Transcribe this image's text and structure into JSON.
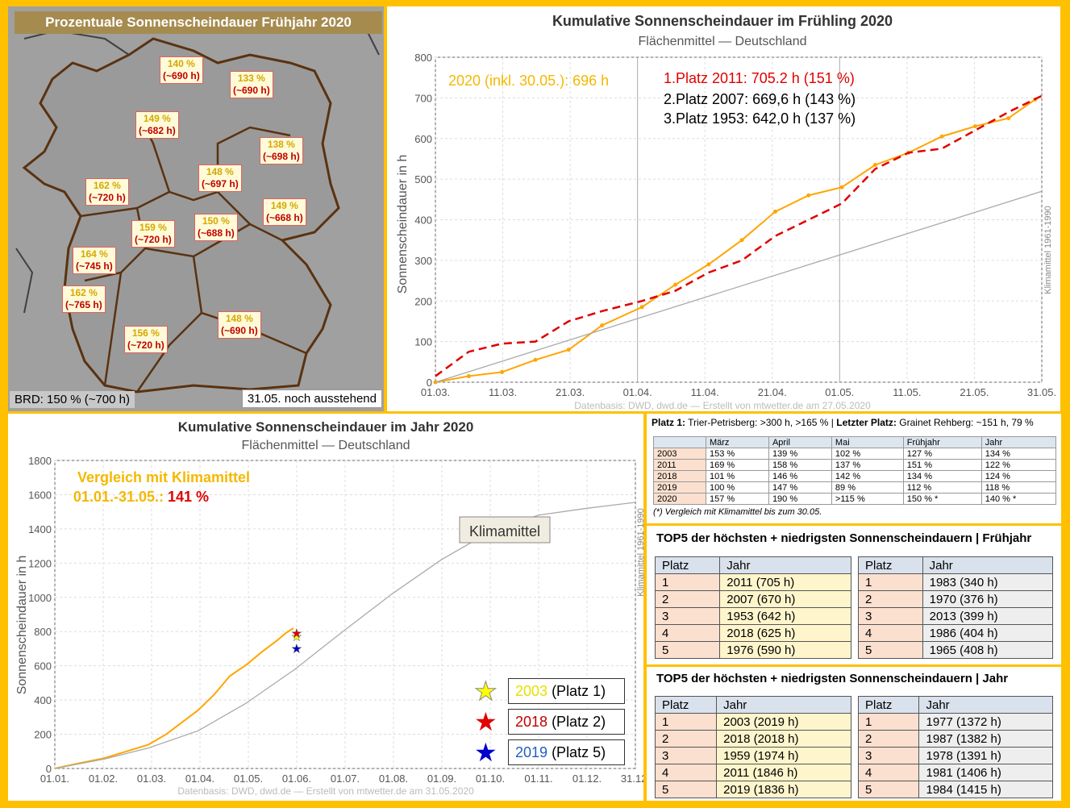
{
  "map": {
    "title": "Prozentuale Sonnenscheindauer Frühjahr 2020",
    "regions": [
      {
        "pct": "140 %",
        "hrs": "(~690 h)"
      },
      {
        "pct": "133 %",
        "hrs": "(~690 h)"
      },
      {
        "pct": "149 %",
        "hrs": "(~682 h)"
      },
      {
        "pct": "138 %",
        "hrs": "(~698 h)"
      },
      {
        "pct": "148 %",
        "hrs": "(~697 h)"
      },
      {
        "pct": "162 %",
        "hrs": "(~720 h)"
      },
      {
        "pct": "149 %",
        "hrs": "(~668 h)"
      },
      {
        "pct": "159 %",
        "hrs": "(~720 h)"
      },
      {
        "pct": "150 %",
        "hrs": "(~688 h)"
      },
      {
        "pct": "164 %",
        "hrs": "(~745 h)"
      },
      {
        "pct": "162 %",
        "hrs": "(~765 h)"
      },
      {
        "pct": "148 %",
        "hrs": "(~690 h)"
      },
      {
        "pct": "156 %",
        "hrs": "(~720 h)"
      }
    ],
    "footer_left": "BRD: 150 % (~700 h)",
    "footer_right": "31.05. noch ausstehend"
  },
  "chart_data": [
    {
      "type": "line",
      "title": "Kumulative Sonnenscheindauer im Frühling 2020",
      "subtitle": "Flächenmittel — Deutschland",
      "ylabel": "Sonnenscheindauer in h",
      "ylim": [
        0,
        800
      ],
      "yticks": [
        "0",
        "100",
        "200",
        "300",
        "400",
        "500",
        "600",
        "700",
        "800"
      ],
      "x_ticks": [
        "01.03.",
        "11.03.",
        "21.03.",
        "01.04.",
        "11.04.",
        "21.04.",
        "01.05.",
        "11.05.",
        "21.05.",
        "31.05."
      ],
      "x_range_days": [
        0,
        91
      ],
      "annotations": {
        "current": "2020 (inkl. 30.05.): 696 h",
        "first": "1.Platz 2011: 705.2 h (151 %)",
        "second": "2.Platz 2007: 669,6 h (143 %)",
        "third": "3.Platz 1953: 642,0 h (137 %)"
      },
      "side_label": "Klimamittel 1961-1990",
      "source": "Datenbasis: DWD, dwd.de — Erstellt von mtwetter.de am 27.05.2020",
      "series": [
        {
          "name": "2020",
          "color": "#ffa500",
          "x": [
            0,
            5,
            10,
            15,
            20,
            25,
            31,
            36,
            41,
            46,
            51,
            56,
            61,
            66,
            71,
            76,
            81,
            86,
            90
          ],
          "values": [
            0,
            15,
            25,
            55,
            80,
            140,
            185,
            240,
            290,
            350,
            420,
            460,
            480,
            535,
            565,
            605,
            630,
            650,
            696
          ]
        },
        {
          "name": "2011",
          "color": "#e00000",
          "x": [
            0,
            5,
            10,
            15,
            20,
            25,
            31,
            36,
            41,
            46,
            51,
            56,
            61,
            66,
            71,
            76,
            81,
            86,
            91
          ],
          "values": [
            15,
            75,
            95,
            100,
            150,
            175,
            200,
            225,
            270,
            300,
            360,
            400,
            440,
            525,
            565,
            575,
            620,
            665,
            705
          ]
        },
        {
          "name": "Klimamittel 1961-1990",
          "color": "#aaaaaa",
          "x": [
            0,
            91
          ],
          "values": [
            0,
            470
          ]
        }
      ]
    },
    {
      "type": "line",
      "title": "Kumulative Sonnenscheindauer im Jahr 2020",
      "subtitle": "Flächenmittel — Deutschland",
      "ylabel": "Sonnenscheindauer in h",
      "ylim": [
        0,
        1800
      ],
      "yticks": [
        "0",
        "200",
        "400",
        "600",
        "800",
        "1000",
        "1200",
        "1400",
        "1600",
        "1800"
      ],
      "x_ticks": [
        "01.01.",
        "01.02.",
        "01.03.",
        "01.04.",
        "01.05.",
        "01.06.",
        "01.07.",
        "01.08.",
        "01.09.",
        "01.10.",
        "01.11.",
        "01.12.",
        "31.12."
      ],
      "annotation_line1": "Vergleich mit Klimamittel",
      "annotation_line2": "01.01.-31.05.:",
      "annotation_value": "141 %",
      "callout": "Klimamittel",
      "side_label": "Klimamittel 1961-1990",
      "source": "Datenbasis: DWD, dwd.de — Erstellt von mtwetter.de am 31.05.2020",
      "legend": [
        {
          "year": "2003",
          "rank": "(Platz 1)",
          "color": "#ffff00"
        },
        {
          "year": "2018",
          "rank": "(Platz 2)",
          "color": "#e00000"
        },
        {
          "year": "2019",
          "rank": "(Platz 5)",
          "color": "#0000cc"
        }
      ],
      "series": [
        {
          "name": "2020",
          "color": "#ffa500",
          "x": [
            0,
            15,
            31,
            45,
            59,
            70,
            80,
            90,
            100,
            110,
            121,
            130,
            140,
            145,
            150
          ],
          "values": [
            0,
            30,
            60,
            100,
            140,
            200,
            270,
            340,
            430,
            540,
            610,
            680,
            750,
            790,
            820
          ]
        },
        {
          "name": "Klimamittel 1961-1990",
          "color": "#aaaaaa",
          "x": [
            0,
            31,
            59,
            90,
            120,
            151,
            181,
            212,
            243,
            273,
            304,
            334,
            365
          ],
          "values": [
            0,
            55,
            120,
            220,
            380,
            580,
            800,
            1020,
            1220,
            1380,
            1480,
            1520,
            1555
          ]
        },
        {
          "name": "2003",
          "color": "#ffff00",
          "x": [
            152
          ],
          "values": [
            770
          ]
        },
        {
          "name": "2018",
          "color": "#e00000",
          "x": [
            152
          ],
          "values": [
            790
          ]
        },
        {
          "name": "2019",
          "color": "#0000cc",
          "x": [
            152
          ],
          "values": [
            700
          ]
        }
      ]
    }
  ],
  "stats": {
    "summary_label1": "Platz 1:",
    "summary_text1": "Trier-Petrisberg:  >300 h, >165 % |",
    "summary_label2": "Letzter Platz:",
    "summary_text2": "Grainet Rehberg:  ~151 h, 79 %",
    "headers": [
      "",
      "März",
      "April",
      "Mai",
      "Frühjahr",
      "Jahr"
    ],
    "rows": [
      [
        "2003",
        "153 %",
        "139 %",
        "102 %",
        "127 %",
        "134 %"
      ],
      [
        "2011",
        "169 %",
        "158 %",
        "137 %",
        "151 %",
        "122 %"
      ],
      [
        "2018",
        "101 %",
        "146 %",
        "142 %",
        "134 %",
        "124 %"
      ],
      [
        "2019",
        "100 %",
        "147 %",
        "89 %",
        "112 %",
        "118 %"
      ],
      [
        "2020",
        "157 %",
        "190 %",
        ">115 %",
        "150 % *",
        "140 % *"
      ]
    ],
    "footnote": "(*) Vergleich mit Klimamittel bis zum 30.05.",
    "spring_title": "TOP5 der höchsten + niedrigsten Sonnenscheindauern | Frühjahr",
    "year_title": "TOP5 der höchsten + niedrigsten Sonnenscheindauern | Jahr",
    "col_platz": "Platz",
    "col_jahr": "Jahr",
    "spring_high": [
      [
        "1",
        "2011 (705 h)"
      ],
      [
        "2",
        "2007 (670 h)"
      ],
      [
        "3",
        "1953 (642 h)"
      ],
      [
        "4",
        "2018 (625 h)"
      ],
      [
        "5",
        "1976 (590 h)"
      ]
    ],
    "spring_low": [
      [
        "1",
        "1983 (340 h)"
      ],
      [
        "2",
        "1970 (376 h)"
      ],
      [
        "3",
        "2013 (399 h)"
      ],
      [
        "4",
        "1986 (404 h)"
      ],
      [
        "5",
        "1965 (408 h)"
      ]
    ],
    "year_high": [
      [
        "1",
        "2003 (2019 h)"
      ],
      [
        "2",
        "2018 (2018 h)"
      ],
      [
        "3",
        "1959 (1974 h)"
      ],
      [
        "4",
        "2011 (1846 h)"
      ],
      [
        "5",
        "2019 (1836 h)"
      ]
    ],
    "year_low": [
      [
        "1",
        "1977 (1372 h)"
      ],
      [
        "2",
        "1987 (1382 h)"
      ],
      [
        "3",
        "1978 (1391 h)"
      ],
      [
        "4",
        "1981 (1406 h)"
      ],
      [
        "5",
        "1984 (1415 h)"
      ]
    ]
  }
}
